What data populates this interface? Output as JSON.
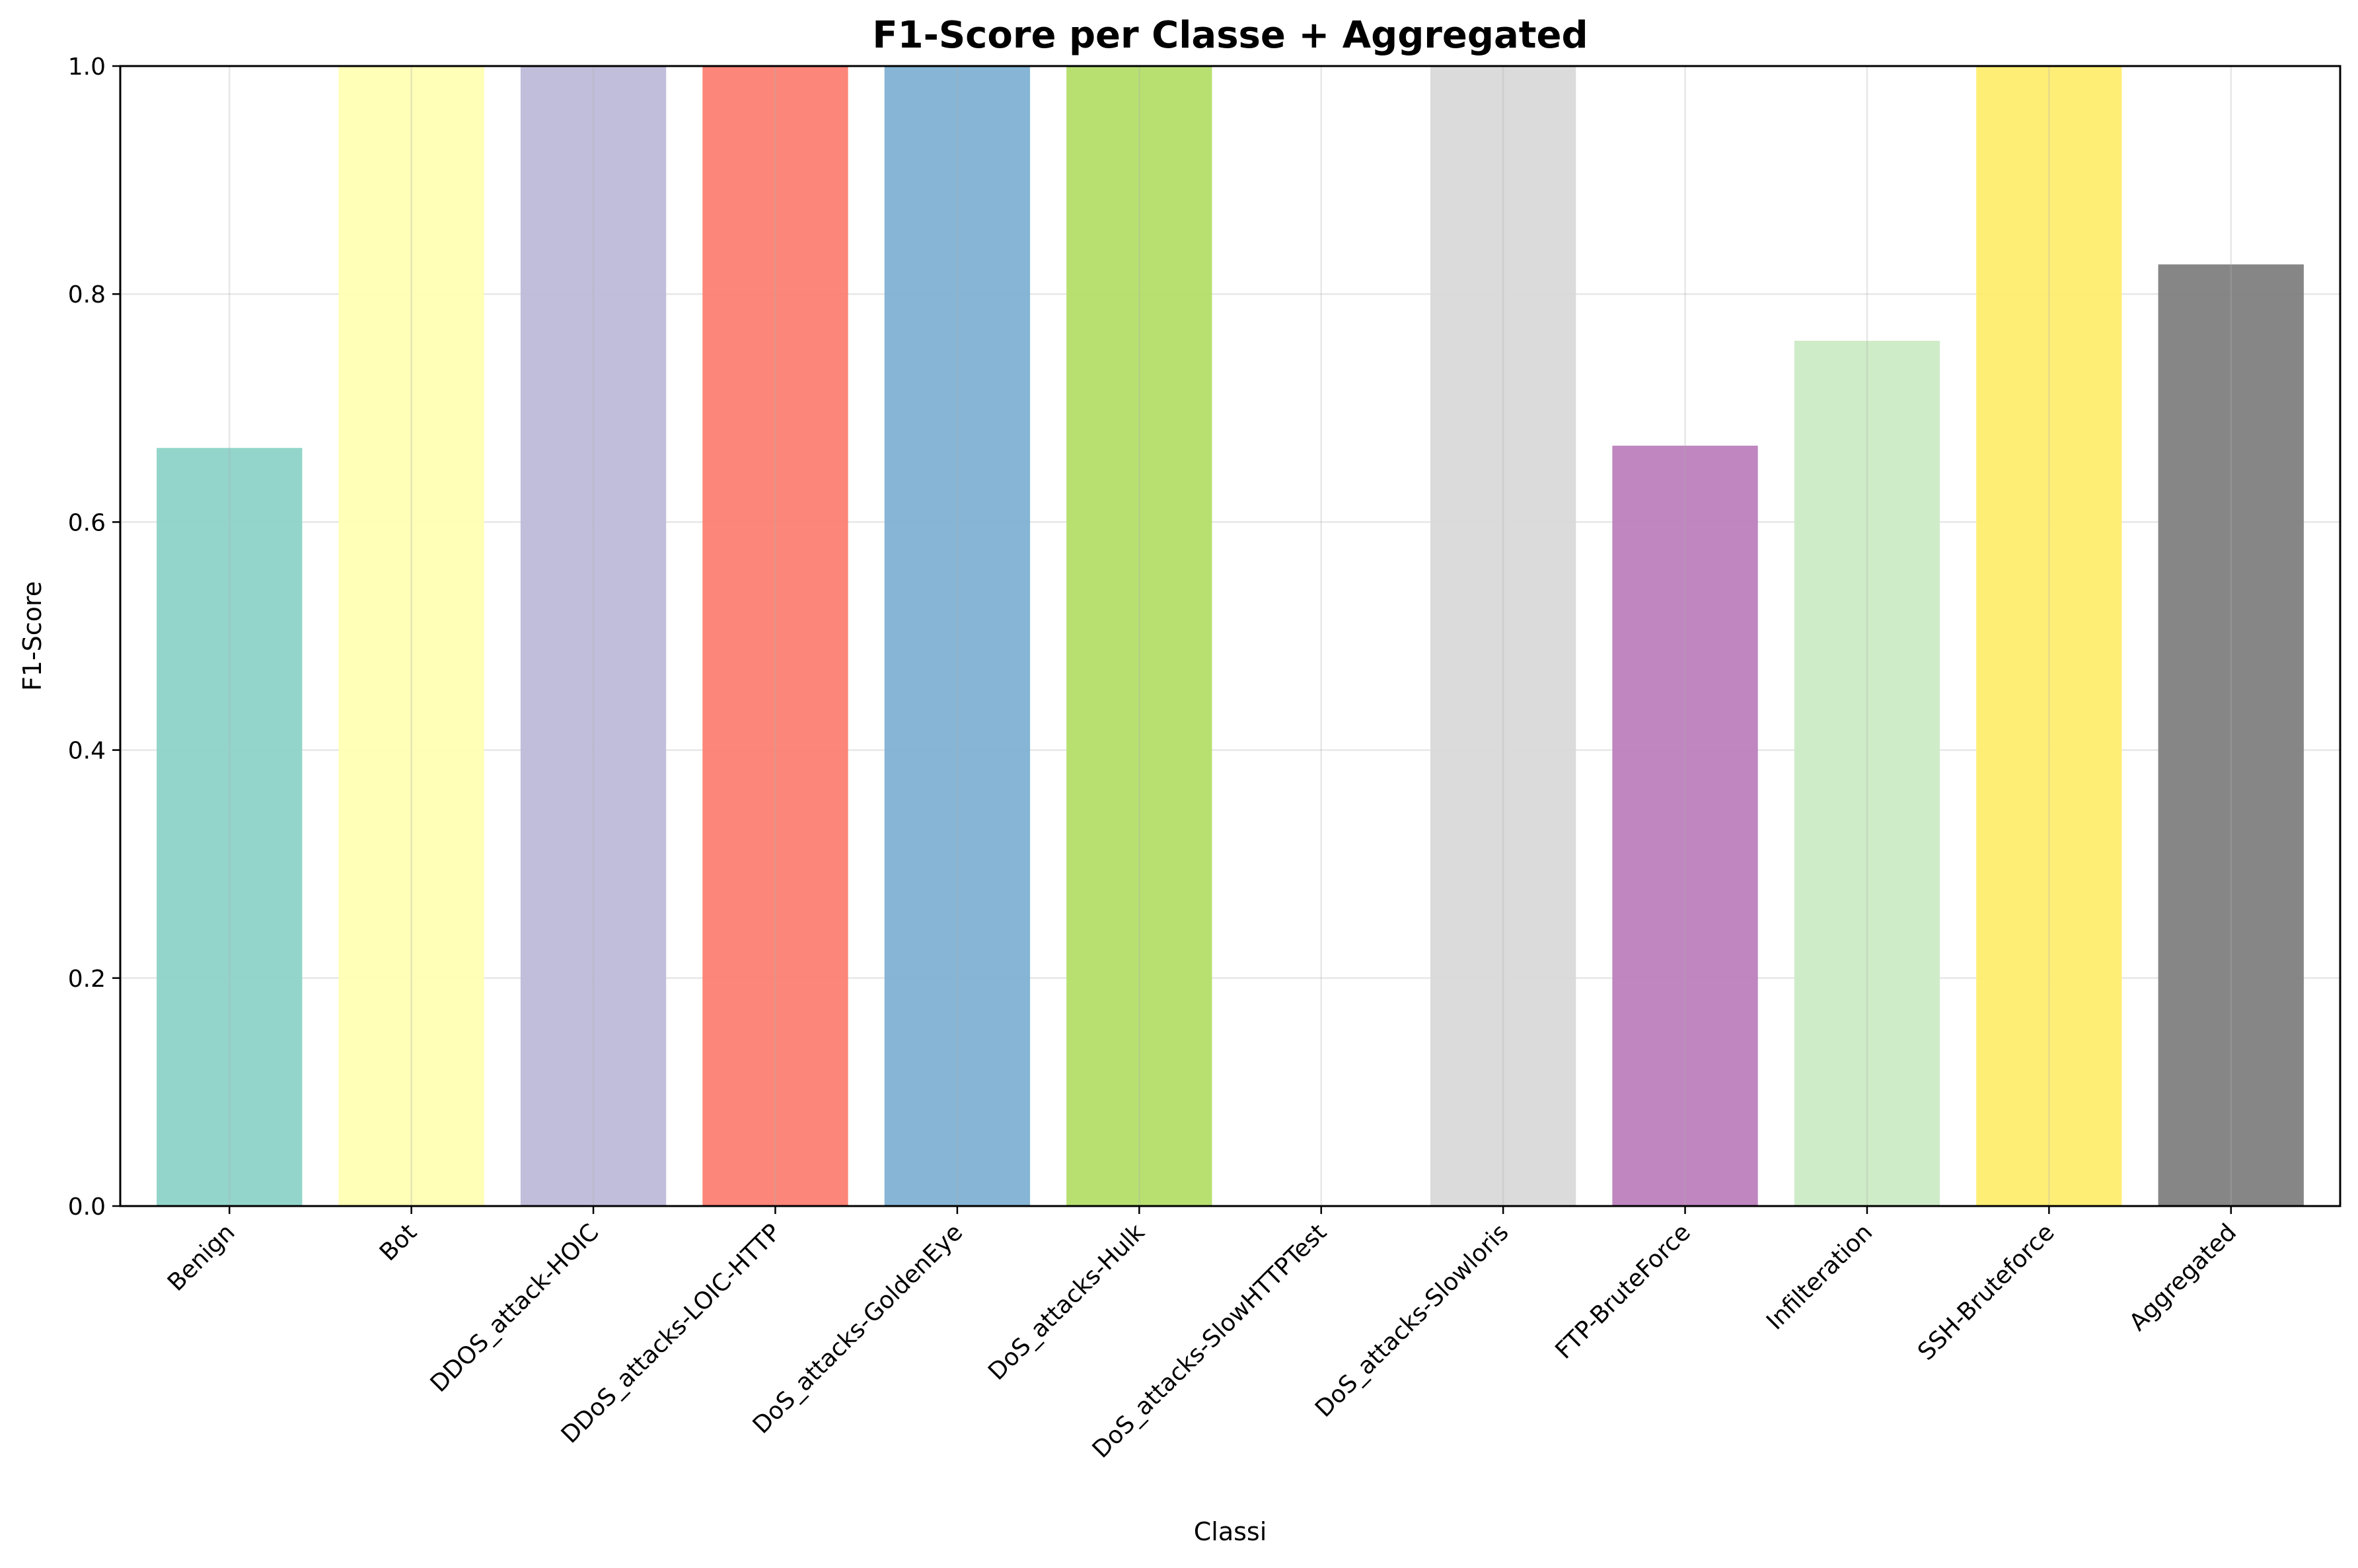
{
  "chart_data": {
    "type": "bar",
    "title": "F1-Score per Classe + Aggregated",
    "xlabel": "Classi",
    "ylabel": "F1-Score",
    "ylim": [
      0.0,
      1.0
    ],
    "yticks": [
      "0.0",
      "0.2",
      "0.4",
      "0.6",
      "0.8",
      "1.0"
    ],
    "grid": true,
    "categories": [
      "Benign",
      "Bot",
      "DDOS_attack-HOIC",
      "DDoS_attacks-LOIC-HTTP",
      "DoS_attacks-GoldenEye",
      "DoS_attacks-Hulk",
      "DoS_attacks-SlowHTTPTest",
      "DoS_attacks-Slowloris",
      "FTP-BruteForce",
      "Infilteration",
      "SSH-Bruteforce",
      "Aggregated"
    ],
    "values": [
      0.665,
      1.0,
      1.0,
      1.0,
      1.0,
      1.0,
      0.0,
      1.0,
      0.667,
      0.759,
      1.0,
      0.826
    ],
    "colors": [
      "#8dd3c7",
      "#ffffb3",
      "#bebada",
      "#fb8072",
      "#80b1d3",
      "#b3de69",
      "#fccde5",
      "#d9d9d9",
      "#bc80bd",
      "#ccebc5",
      "#ffed6f",
      "#808080"
    ]
  }
}
